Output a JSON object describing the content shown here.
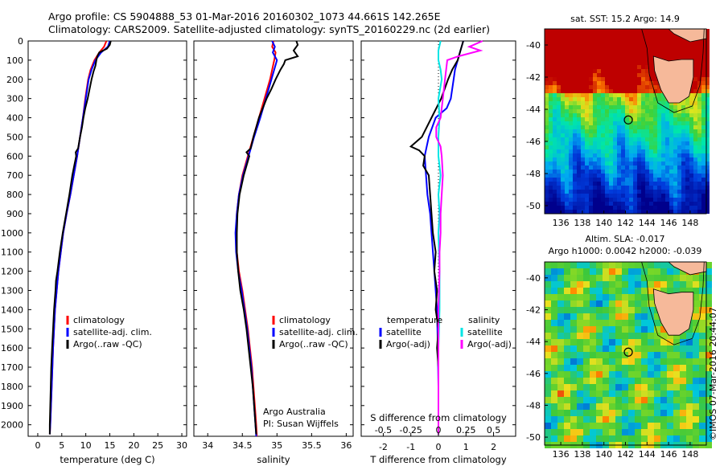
{
  "header": {
    "line1": "Argo profile: CS 5904888_53 01-Mar-2016 20160302_1073 44.661S 142.265E",
    "line2": "Climatology: CARS2009. Satellite-adjusted climatology: synTS_20160229.nc (2d earlier)"
  },
  "colors": {
    "climatology": "#ff0000",
    "satellite": "#0000ff",
    "argo": "#000000",
    "sal_satellite": "#00e5e5",
    "sal_argo": "#ff00ff",
    "land": "#f6b99a"
  },
  "depth_ticks": [
    0,
    100,
    200,
    300,
    400,
    500,
    600,
    700,
    800,
    900,
    1000,
    1100,
    1200,
    1300,
    1400,
    1500,
    1600,
    1700,
    1800,
    1900,
    2000
  ],
  "chart_data": [
    {
      "type": "line",
      "name": "temperature profile",
      "xlabel": "temperature (deg C)",
      "xlim": [
        -2,
        31
      ],
      "ylim": [
        2060,
        0
      ],
      "xticks": [
        0,
        5,
        10,
        15,
        20,
        25,
        30
      ],
      "legend": [
        "climatology",
        "satellite-adj. clim.",
        "Argo(..raw -QC)"
      ],
      "series": [
        {
          "name": "climatology",
          "depth": [
            0,
            30,
            60,
            100,
            150,
            200,
            300,
            400,
            500,
            600,
            700,
            800,
            900,
            1000,
            1200,
            1400,
            1600,
            1800,
            2000,
            2050
          ],
          "values": [
            14.3,
            13.8,
            12.8,
            11.8,
            11.0,
            10.5,
            9.9,
            9.4,
            8.8,
            8.2,
            7.5,
            6.8,
            6.0,
            5.3,
            4.3,
            3.6,
            3.2,
            2.9,
            2.6,
            2.5
          ]
        },
        {
          "name": "satellite-adj. clim.",
          "depth": [
            0,
            30,
            60,
            100,
            150,
            200,
            300,
            400,
            500,
            600,
            700,
            800,
            900,
            1000,
            1200,
            1400,
            1600,
            1800,
            2000,
            2050
          ],
          "values": [
            15.0,
            14.6,
            13.2,
            12.0,
            11.2,
            10.6,
            10.0,
            9.4,
            8.8,
            8.2,
            7.5,
            6.8,
            6.0,
            5.3,
            4.3,
            3.6,
            3.2,
            2.9,
            2.6,
            2.5
          ]
        },
        {
          "name": "Argo(..raw -QC)",
          "depth": [
            0,
            20,
            40,
            60,
            80,
            100,
            130,
            160,
            200,
            250,
            300,
            350,
            400,
            450,
            500,
            560,
            580,
            600,
            650,
            700,
            800,
            900,
            1000,
            1100,
            1200,
            1250,
            1300,
            1400,
            1500,
            1600,
            1700,
            1800,
            1900,
            2000,
            2050
          ],
          "values": [
            15.2,
            15.0,
            14.4,
            12.8,
            12.4,
            12.2,
            12.0,
            11.6,
            11.2,
            10.8,
            10.4,
            9.9,
            9.5,
            9.2,
            8.8,
            8.4,
            7.9,
            8.0,
            7.6,
            7.2,
            6.6,
            5.9,
            5.2,
            4.6,
            4.1,
            3.8,
            3.7,
            3.4,
            3.2,
            3.0,
            2.8,
            2.7,
            2.6,
            2.5,
            2.5
          ]
        }
      ]
    },
    {
      "type": "line",
      "name": "salinity profile",
      "xlabel": "salinity",
      "xlim": [
        33.8,
        36.1
      ],
      "ylim": [
        2060,
        0
      ],
      "xticks": [
        34,
        34.5,
        35,
        35.5,
        36
      ],
      "legend": [
        "climatology",
        "satellite-adj. clim.",
        "Argo(..raw -QC)"
      ],
      "annotation": [
        "Argo Australia",
        "PI: Susan Wijffels"
      ],
      "series": [
        {
          "name": "climatology",
          "depth": [
            0,
            30,
            60,
            100,
            200,
            300,
            400,
            500,
            600,
            700,
            800,
            900,
            1000,
            1100,
            1200,
            1300,
            1500,
            1700,
            1900,
            2000,
            2060
          ],
          "values": [
            34.95,
            34.93,
            34.98,
            34.96,
            34.9,
            34.82,
            34.74,
            34.66,
            34.58,
            34.5,
            34.45,
            34.42,
            34.41,
            34.42,
            34.45,
            34.5,
            34.58,
            34.64,
            34.68,
            34.7,
            34.71
          ]
        },
        {
          "name": "satellite-adj. clim.",
          "depth": [
            0,
            30,
            60,
            100,
            200,
            300,
            400,
            500,
            600,
            700,
            800,
            900,
            1000,
            1100,
            1200,
            1300,
            1500,
            1700,
            1900,
            2000,
            2060
          ],
          "values": [
            34.93,
            34.97,
            34.94,
            35.0,
            34.92,
            34.84,
            34.76,
            34.67,
            34.59,
            34.51,
            34.45,
            34.42,
            34.4,
            34.41,
            34.44,
            34.49,
            34.57,
            34.63,
            34.67,
            34.69,
            34.7
          ]
        },
        {
          "name": "Argo(..raw -QC)",
          "depth": [
            0,
            20,
            50,
            80,
            100,
            120,
            150,
            200,
            250,
            300,
            400,
            450,
            500,
            560,
            580,
            600,
            700,
            800,
            900,
            1000,
            1100,
            1200,
            1300,
            1400,
            1500,
            1600,
            1700,
            1800,
            1900,
            2000,
            2050
          ],
          "values": [
            35.28,
            35.3,
            35.24,
            35.3,
            35.12,
            35.1,
            35.05,
            34.98,
            34.92,
            34.85,
            34.74,
            34.7,
            34.66,
            34.62,
            34.56,
            34.6,
            34.52,
            34.46,
            34.43,
            34.42,
            34.42,
            34.44,
            34.47,
            34.52,
            34.56,
            34.59,
            34.62,
            34.65,
            34.67,
            34.69,
            34.7
          ]
        }
      ]
    },
    {
      "type": "line",
      "name": "difference from climatology",
      "xlabel": "T difference from climatology",
      "xlabel2": "S difference from climatology",
      "xlim": [
        -2.8,
        2.8
      ],
      "ylim": [
        2060,
        0
      ],
      "xticks": [
        -2,
        -1,
        0,
        1,
        2
      ],
      "xticks2": [
        "-0.5",
        "-0.25",
        "0",
        "0.25",
        "0.5"
      ],
      "legend_left": {
        "title": "temperature",
        "items": [
          "satellite",
          "Argo(-adj)"
        ]
      },
      "legend_right": {
        "title": "salinity",
        "items": [
          "satellite",
          "Argo(-adj)"
        ]
      },
      "series": [
        {
          "name": "temperature satellite",
          "depth": [
            0,
            50,
            100,
            150,
            200,
            300,
            350,
            400,
            500,
            600,
            700,
            800,
            900,
            1000,
            1200,
            1400,
            1600,
            1800,
            2000,
            2050
          ],
          "values": [
            0.9,
            0.8,
            0.7,
            0.6,
            0.55,
            0.45,
            0.3,
            -0.1,
            -0.35,
            -0.5,
            -0.45,
            -0.4,
            -0.3,
            -0.25,
            -0.15,
            -0.05,
            -0.02,
            0,
            0,
            0
          ]
        },
        {
          "name": "temperature Argo(-adj)",
          "depth": [
            0,
            50,
            100,
            150,
            200,
            300,
            400,
            500,
            550,
            570,
            600,
            650,
            700,
            800,
            900,
            1000,
            1100,
            1200,
            1300,
            1400,
            1500,
            1600,
            1700,
            1800,
            1900,
            2000,
            2050
          ],
          "values": [
            0.9,
            0.8,
            0.7,
            0.5,
            0.35,
            0.1,
            -0.25,
            -0.6,
            -1.0,
            -0.7,
            -0.5,
            -0.55,
            -0.35,
            -0.3,
            -0.25,
            -0.2,
            -0.1,
            -0.15,
            -0.05,
            -0.1,
            0,
            -0.05,
            0,
            0,
            0,
            0,
            0
          ]
        },
        {
          "name": "salinity satellite",
          "depth": [
            0,
            50,
            100,
            150,
            200,
            300,
            400,
            500,
            600,
            700,
            800,
            900,
            1000,
            1200,
            1400,
            1600,
            1800,
            2000,
            2050
          ],
          "values": [
            0.02,
            0.0,
            0.0,
            0.02,
            0.03,
            0.0,
            0.01,
            0.0,
            0.0,
            0.02,
            0.0,
            0.01,
            0.0,
            0.01,
            0.01,
            0.0,
            0.0,
            0.0,
            0.0
          ]
        },
        {
          "name": "salinity Argo(-adj)",
          "depth": [
            0,
            30,
            50,
            80,
            100,
            150,
            200,
            300,
            400,
            450,
            500,
            550,
            600,
            700,
            800,
            900,
            1000,
            1100,
            1200,
            1400,
            1600,
            1800,
            2000,
            2050
          ],
          "values": [
            0.4,
            0.28,
            0.38,
            0.18,
            0.08,
            0.07,
            0.06,
            0.04,
            0.02,
            -0.02,
            -0.02,
            0.02,
            0.03,
            0.04,
            0.03,
            0.02,
            0.02,
            0.01,
            0.01,
            0.0,
            0.0,
            0.0,
            0.0,
            0.0
          ]
        }
      ]
    },
    {
      "type": "heatmap",
      "name": "SST map",
      "title": "sat. SST: 15.2 Argo: 14.9",
      "xticks": [
        136,
        138,
        140,
        142,
        144,
        146,
        148
      ],
      "yticks": [
        -40,
        -42,
        -44,
        -46,
        -48,
        -50
      ],
      "xlim": [
        134.5,
        149.5
      ],
      "ylim": [
        -50.5,
        -39
      ]
    },
    {
      "type": "heatmap",
      "name": "SLA map",
      "title": "Altim. SLA: -0.017",
      "subtitle": "Argo h1000: 0.0042 h2000: -0.039",
      "xticks": [
        136,
        138,
        140,
        142,
        144,
        146,
        148
      ],
      "yticks": [
        -40,
        -42,
        -44,
        -46,
        -48,
        -50
      ],
      "xlim": [
        134.5,
        149.5
      ],
      "ylim": [
        -50.5,
        -39
      ],
      "side_label": "©IMOS 07-Mar-2016 20:44:07"
    }
  ]
}
